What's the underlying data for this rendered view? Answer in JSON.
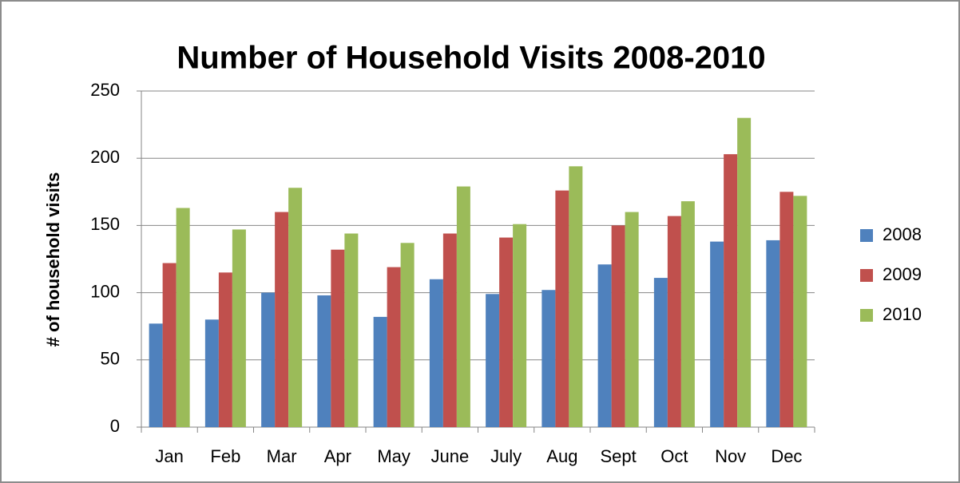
{
  "chart_data": {
    "type": "bar",
    "title": "Number of Household Visits 2008-2010",
    "y_label": "# of household visits",
    "categories": [
      "Jan",
      "Feb",
      "Mar",
      "Apr",
      "May",
      "June",
      "July",
      "Aug",
      "Sept",
      "Oct",
      "Nov",
      "Dec"
    ],
    "series": [
      {
        "name": "2008",
        "color": "#4f81bd",
        "values": [
          77,
          80,
          100,
          98,
          82,
          110,
          99,
          102,
          121,
          111,
          138,
          139
        ]
      },
      {
        "name": "2009",
        "color": "#c0504d",
        "values": [
          122,
          115,
          160,
          132,
          119,
          144,
          141,
          176,
          150,
          157,
          203,
          175
        ]
      },
      {
        "name": "2010",
        "color": "#9bbb59",
        "values": [
          163,
          147,
          178,
          144,
          137,
          179,
          151,
          194,
          160,
          168,
          230,
          172
        ]
      }
    ],
    "ylim": [
      0,
      250
    ],
    "yticks": [
      0,
      50,
      100,
      150,
      200,
      250
    ],
    "grid": true,
    "legend": "right"
  }
}
